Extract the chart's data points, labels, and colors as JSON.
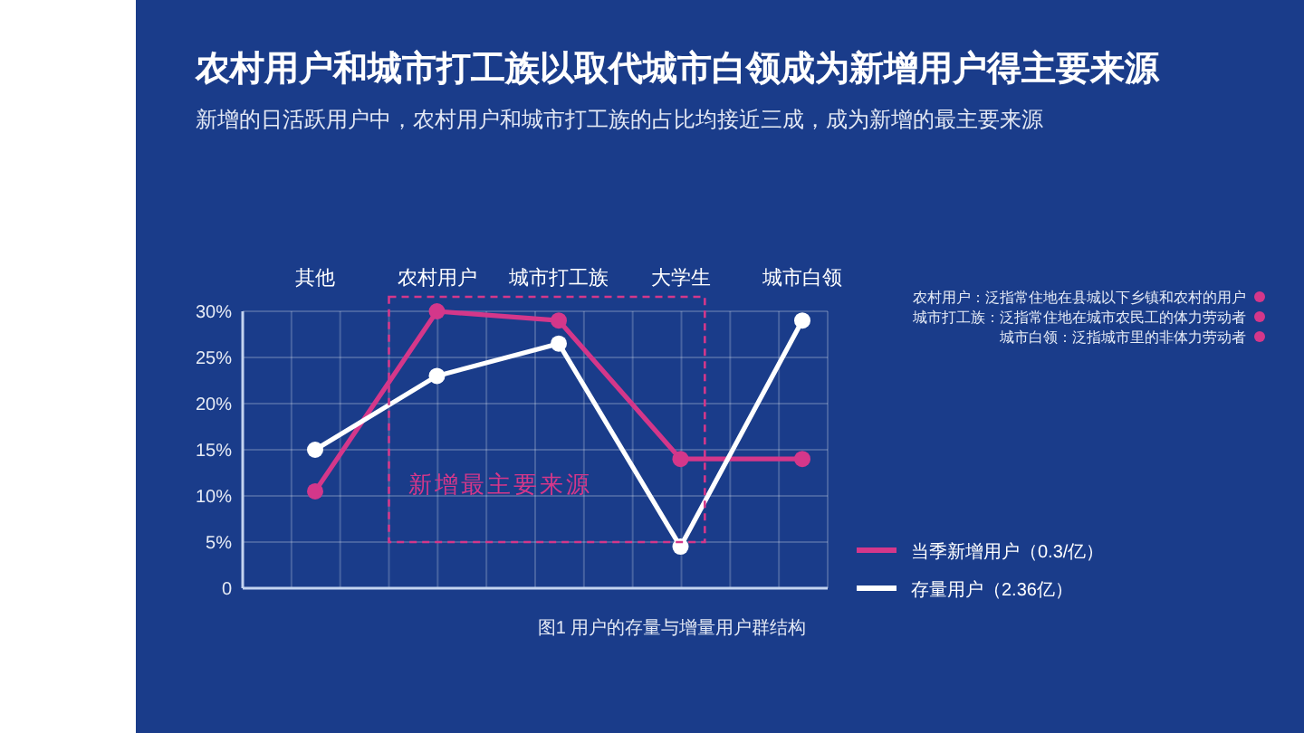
{
  "chart_data": {
    "type": "line",
    "title": "农村用户和城市打工族以取代城市白领成为新增用户得主要来源",
    "subtitle": "新增的日活跃用户中，农村用户和城市打工族的占比均接近三成，成为新增的最主要来源",
    "categories": [
      "其他",
      "农村用户",
      "城市打工族",
      "大学生",
      "城市白领"
    ],
    "series": [
      {
        "name": "当季新增用户（0.3/亿）",
        "color": "#d4378a",
        "values": [
          10.5,
          30,
          29,
          14,
          14
        ]
      },
      {
        "name": "存量用户（2.36亿）",
        "color": "#ffffff",
        "values": [
          15,
          23,
          26.5,
          4.5,
          29
        ]
      }
    ],
    "ylim": [
      0,
      30
    ],
    "yticks": [
      0,
      {
        "value": 5,
        "label": "5%"
      },
      {
        "value": 10,
        "label": "10%"
      },
      {
        "value": 15,
        "label": "15%"
      },
      {
        "value": 20,
        "label": "20%"
      },
      {
        "value": 25,
        "label": "25%"
      },
      {
        "value": 30,
        "label": "30%"
      }
    ],
    "grid": true,
    "legend": "bottom right",
    "marker": "circle",
    "line_style": "solid",
    "annotations": [
      "新增最主要来源",
      "农村用户：泛指常住地在县城以下乡镇和农村的用户",
      "城市打工族：泛指常住地在城市农民工的体力劳动者",
      "城市白领：泛指城市里的非体力劳动者",
      "图1 用户的存量与增量用户群结构"
    ]
  }
}
